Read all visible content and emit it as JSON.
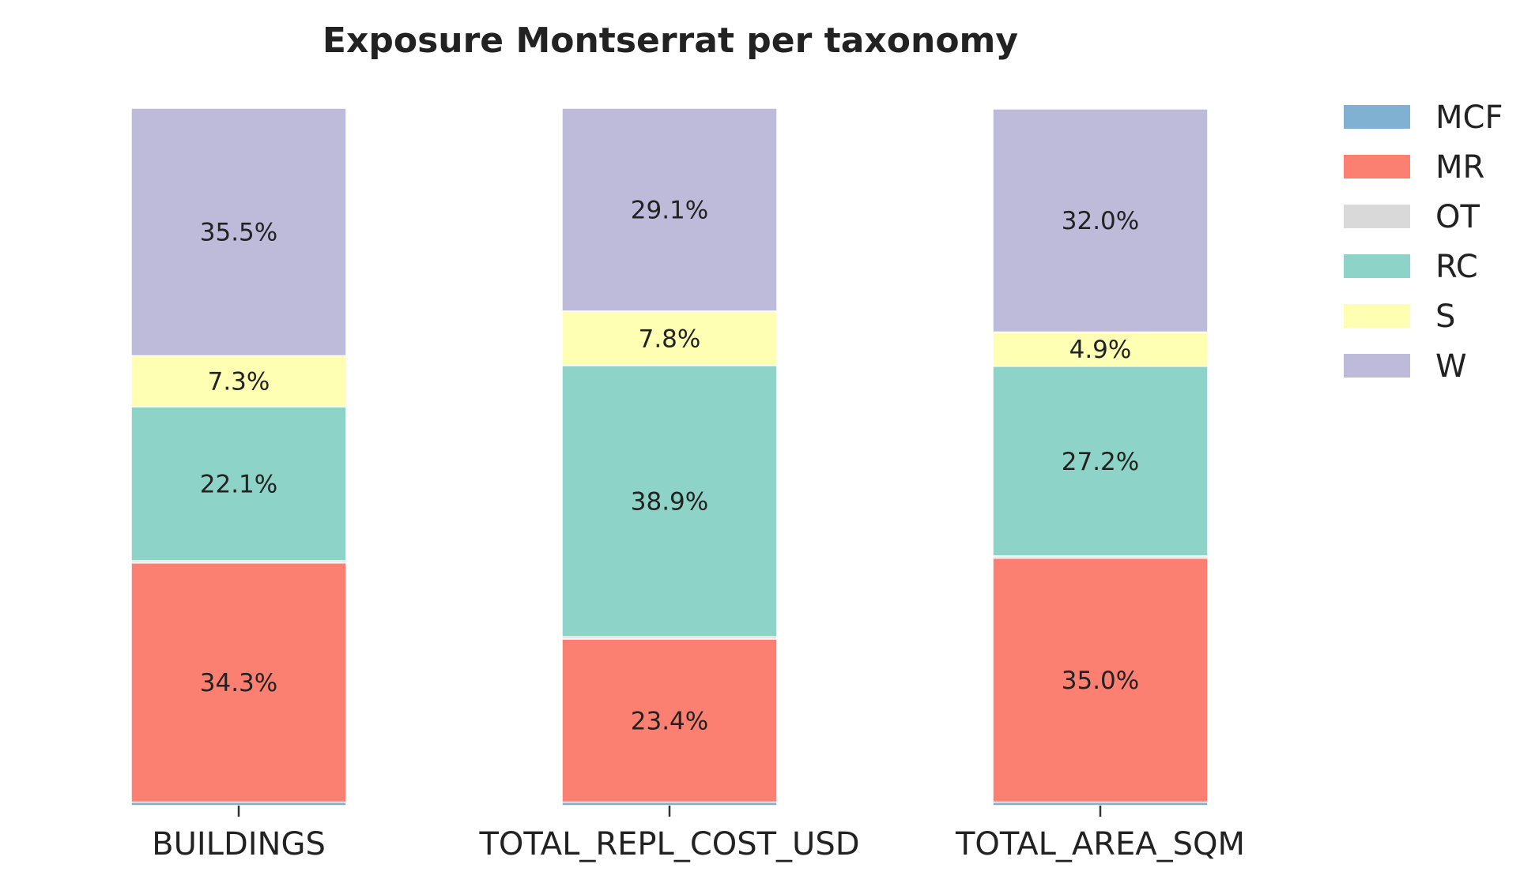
{
  "chart_data": {
    "type": "bar",
    "stacked": true,
    "percent_stacked": true,
    "title": "Exposure Montserrat per taxonomy",
    "xlabel": "",
    "ylabel": "",
    "categories": [
      "BUILDINGS",
      "TOTAL_REPL_COST_USD",
      "TOTAL_AREA_SQM"
    ],
    "ylim": [
      0,
      100
    ],
    "grid": false,
    "legend_position": "top-right, outside plot",
    "series": [
      {
        "name": "MCF",
        "color": "#80b1d3",
        "values": [
          0.5,
          0.5,
          0.5
        ],
        "labels": [
          "",
          "",
          ""
        ]
      },
      {
        "name": "MR",
        "color": "#fb8072",
        "values": [
          34.3,
          23.4,
          35.0
        ],
        "labels": [
          "34.3%",
          "23.4%",
          "35.0%"
        ]
      },
      {
        "name": "OT",
        "color": "#d9d9d9",
        "values": [
          0.3,
          0.3,
          0.3
        ],
        "labels": [
          "",
          "",
          ""
        ]
      },
      {
        "name": "RC",
        "color": "#8dd3c7",
        "values": [
          22.1,
          38.9,
          27.2
        ],
        "labels": [
          "22.1%",
          "38.9%",
          "27.2%"
        ]
      },
      {
        "name": "S",
        "color": "#ffffb3",
        "values": [
          7.3,
          7.8,
          4.9
        ],
        "labels": [
          "7.3%",
          "7.8%",
          "4.9%"
        ]
      },
      {
        "name": "W",
        "color": "#bebada",
        "values": [
          35.5,
          29.1,
          32.0
        ],
        "labels": [
          "35.5%",
          "29.1%",
          "32.0%"
        ]
      }
    ]
  }
}
